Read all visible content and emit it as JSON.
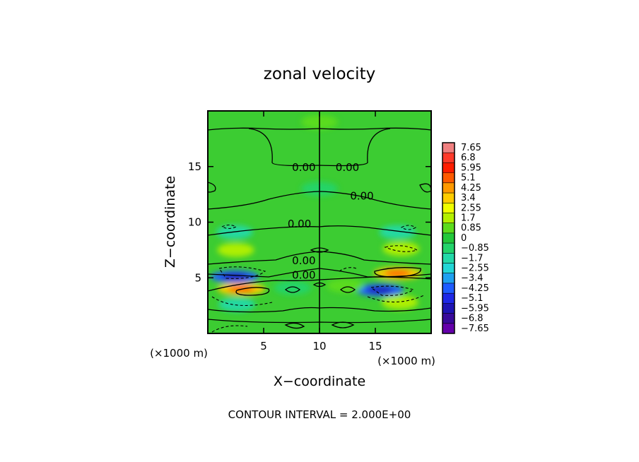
{
  "chart_data": {
    "type": "heatmap",
    "title": "zonal velocity",
    "xlabel": "X−coordinate",
    "ylabel": "Z−coordinate",
    "x_unit": "(×1000 m)",
    "y_unit": "(×1000 m)",
    "xlim": [
      0,
      20
    ],
    "ylim": [
      0,
      20
    ],
    "x_ticks": [
      5,
      10,
      15
    ],
    "y_ticks": [
      5,
      10,
      15
    ],
    "footer": "CONTOUR INTERVAL = 2.000E+00",
    "colorbar": {
      "levels": [
        "7.65",
        "6.8",
        "5.95",
        "5.1",
        "4.25",
        "3.4",
        "2.55",
        "1.7",
        "0.85",
        "0",
        "−0.85",
        "−1.7",
        "−2.55",
        "−3.4",
        "−4.25",
        "−5.1",
        "−5.95",
        "−6.8",
        "−7.65"
      ],
      "colors": [
        "#f08080",
        "#ff3a2a",
        "#ff1d00",
        "#ff5a00",
        "#ff9900",
        "#ffcc00",
        "#f0ff00",
        "#b4f000",
        "#5cdc1c",
        "#22c83a",
        "#22d46a",
        "#22d9a8",
        "#22d6d6",
        "#1ea0f0",
        "#1e5cff",
        "#1e28e6",
        "#1e14b4",
        "#380a9a",
        "#6400aa"
      ]
    },
    "contour_labels": [
      {
        "text": "0.00",
        "x": 8.6,
        "z": 15.0
      },
      {
        "text": "0.00",
        "x": 12.5,
        "z": 15.0
      },
      {
        "text": "0.00",
        "x": 13.8,
        "z": 12.4
      },
      {
        "text": "0.00",
        "x": 8.2,
        "z": 9.9
      },
      {
        "text": "0.00",
        "x": 8.6,
        "z": 6.6
      },
      {
        "text": "0.00",
        "x": 8.6,
        "z": 5.3
      }
    ],
    "features": [
      {
        "x": 3.0,
        "z": 4.0,
        "value": 3.4
      },
      {
        "x": 17.0,
        "z": 5.4,
        "value": 3.4
      },
      {
        "x": 2.4,
        "z": 5.1,
        "value": -4.25
      },
      {
        "x": 15.4,
        "z": 3.9,
        "value": -4.25
      },
      {
        "x": 2.5,
        "z": 7.5,
        "value": 1.7
      },
      {
        "x": 17.3,
        "z": 7.6,
        "value": 1.7
      },
      {
        "x": 2.4,
        "z": 9.1,
        "value": -1.7
      },
      {
        "x": 17.0,
        "z": 9.1,
        "value": -1.7
      },
      {
        "x": 2.6,
        "z": 2.6,
        "value": -1.7
      },
      {
        "x": 17.2,
        "z": 2.8,
        "value": 1.7
      },
      {
        "x": 7.6,
        "z": 4.1,
        "value": -0.85
      },
      {
        "x": 12.3,
        "z": 4.3,
        "value": 0.85
      },
      {
        "x": 10.0,
        "z": 19.0,
        "value": 0.85
      },
      {
        "x": 10.0,
        "z": 13.0,
        "value": -0.85
      }
    ]
  }
}
